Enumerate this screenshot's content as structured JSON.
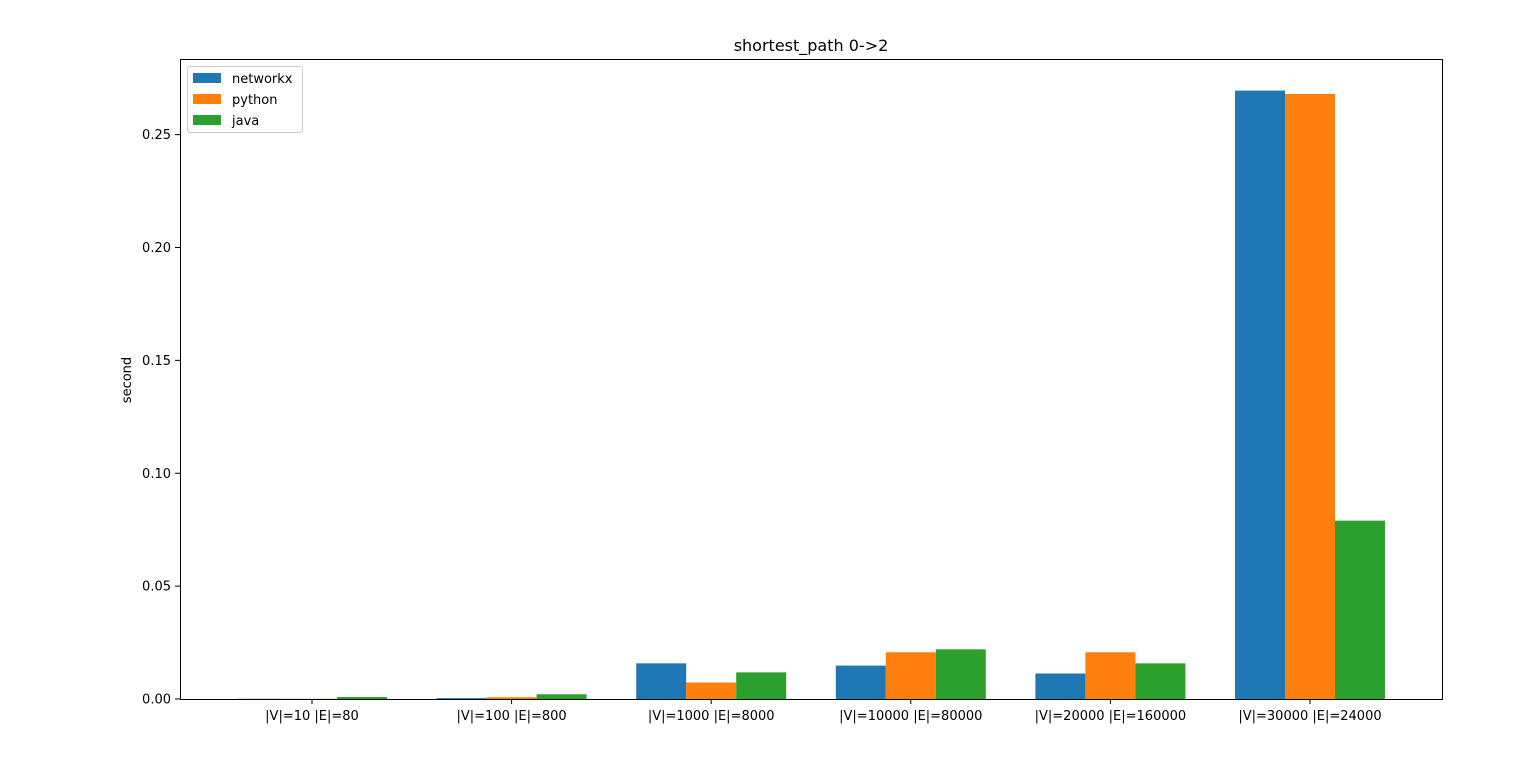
{
  "chart_data": {
    "type": "bar",
    "title": "shortest_path 0->2",
    "xlabel": "",
    "ylabel": "second",
    "categories": [
      "|V|=10 |E|=80",
      "|V|=100 |E|=800",
      "|V|=1000 |E|=8000",
      "|V|=10000 |E|=80000",
      "|V|=20000 |E|=160000",
      "|V|=30000 |E|=24000"
    ],
    "series": [
      {
        "name": "networkx",
        "color": "#1f77b4",
        "values": [
          0.0001,
          0.0004,
          0.0158,
          0.0148,
          0.0113,
          0.2695
        ]
      },
      {
        "name": "python",
        "color": "#ff7f0e",
        "values": [
          0.0001,
          0.0008,
          0.0073,
          0.0207,
          0.0207,
          0.268
        ]
      },
      {
        "name": "java",
        "color": "#2ca02c",
        "values": [
          0.0009,
          0.0021,
          0.0118,
          0.022,
          0.0158,
          0.079
        ]
      }
    ],
    "ylim": [
      0,
      0.2835
    ],
    "yticks": [
      "0.00",
      "0.05",
      "0.10",
      "0.15",
      "0.20",
      "0.25"
    ],
    "legend_loc": "upper-left",
    "grid": false
  }
}
